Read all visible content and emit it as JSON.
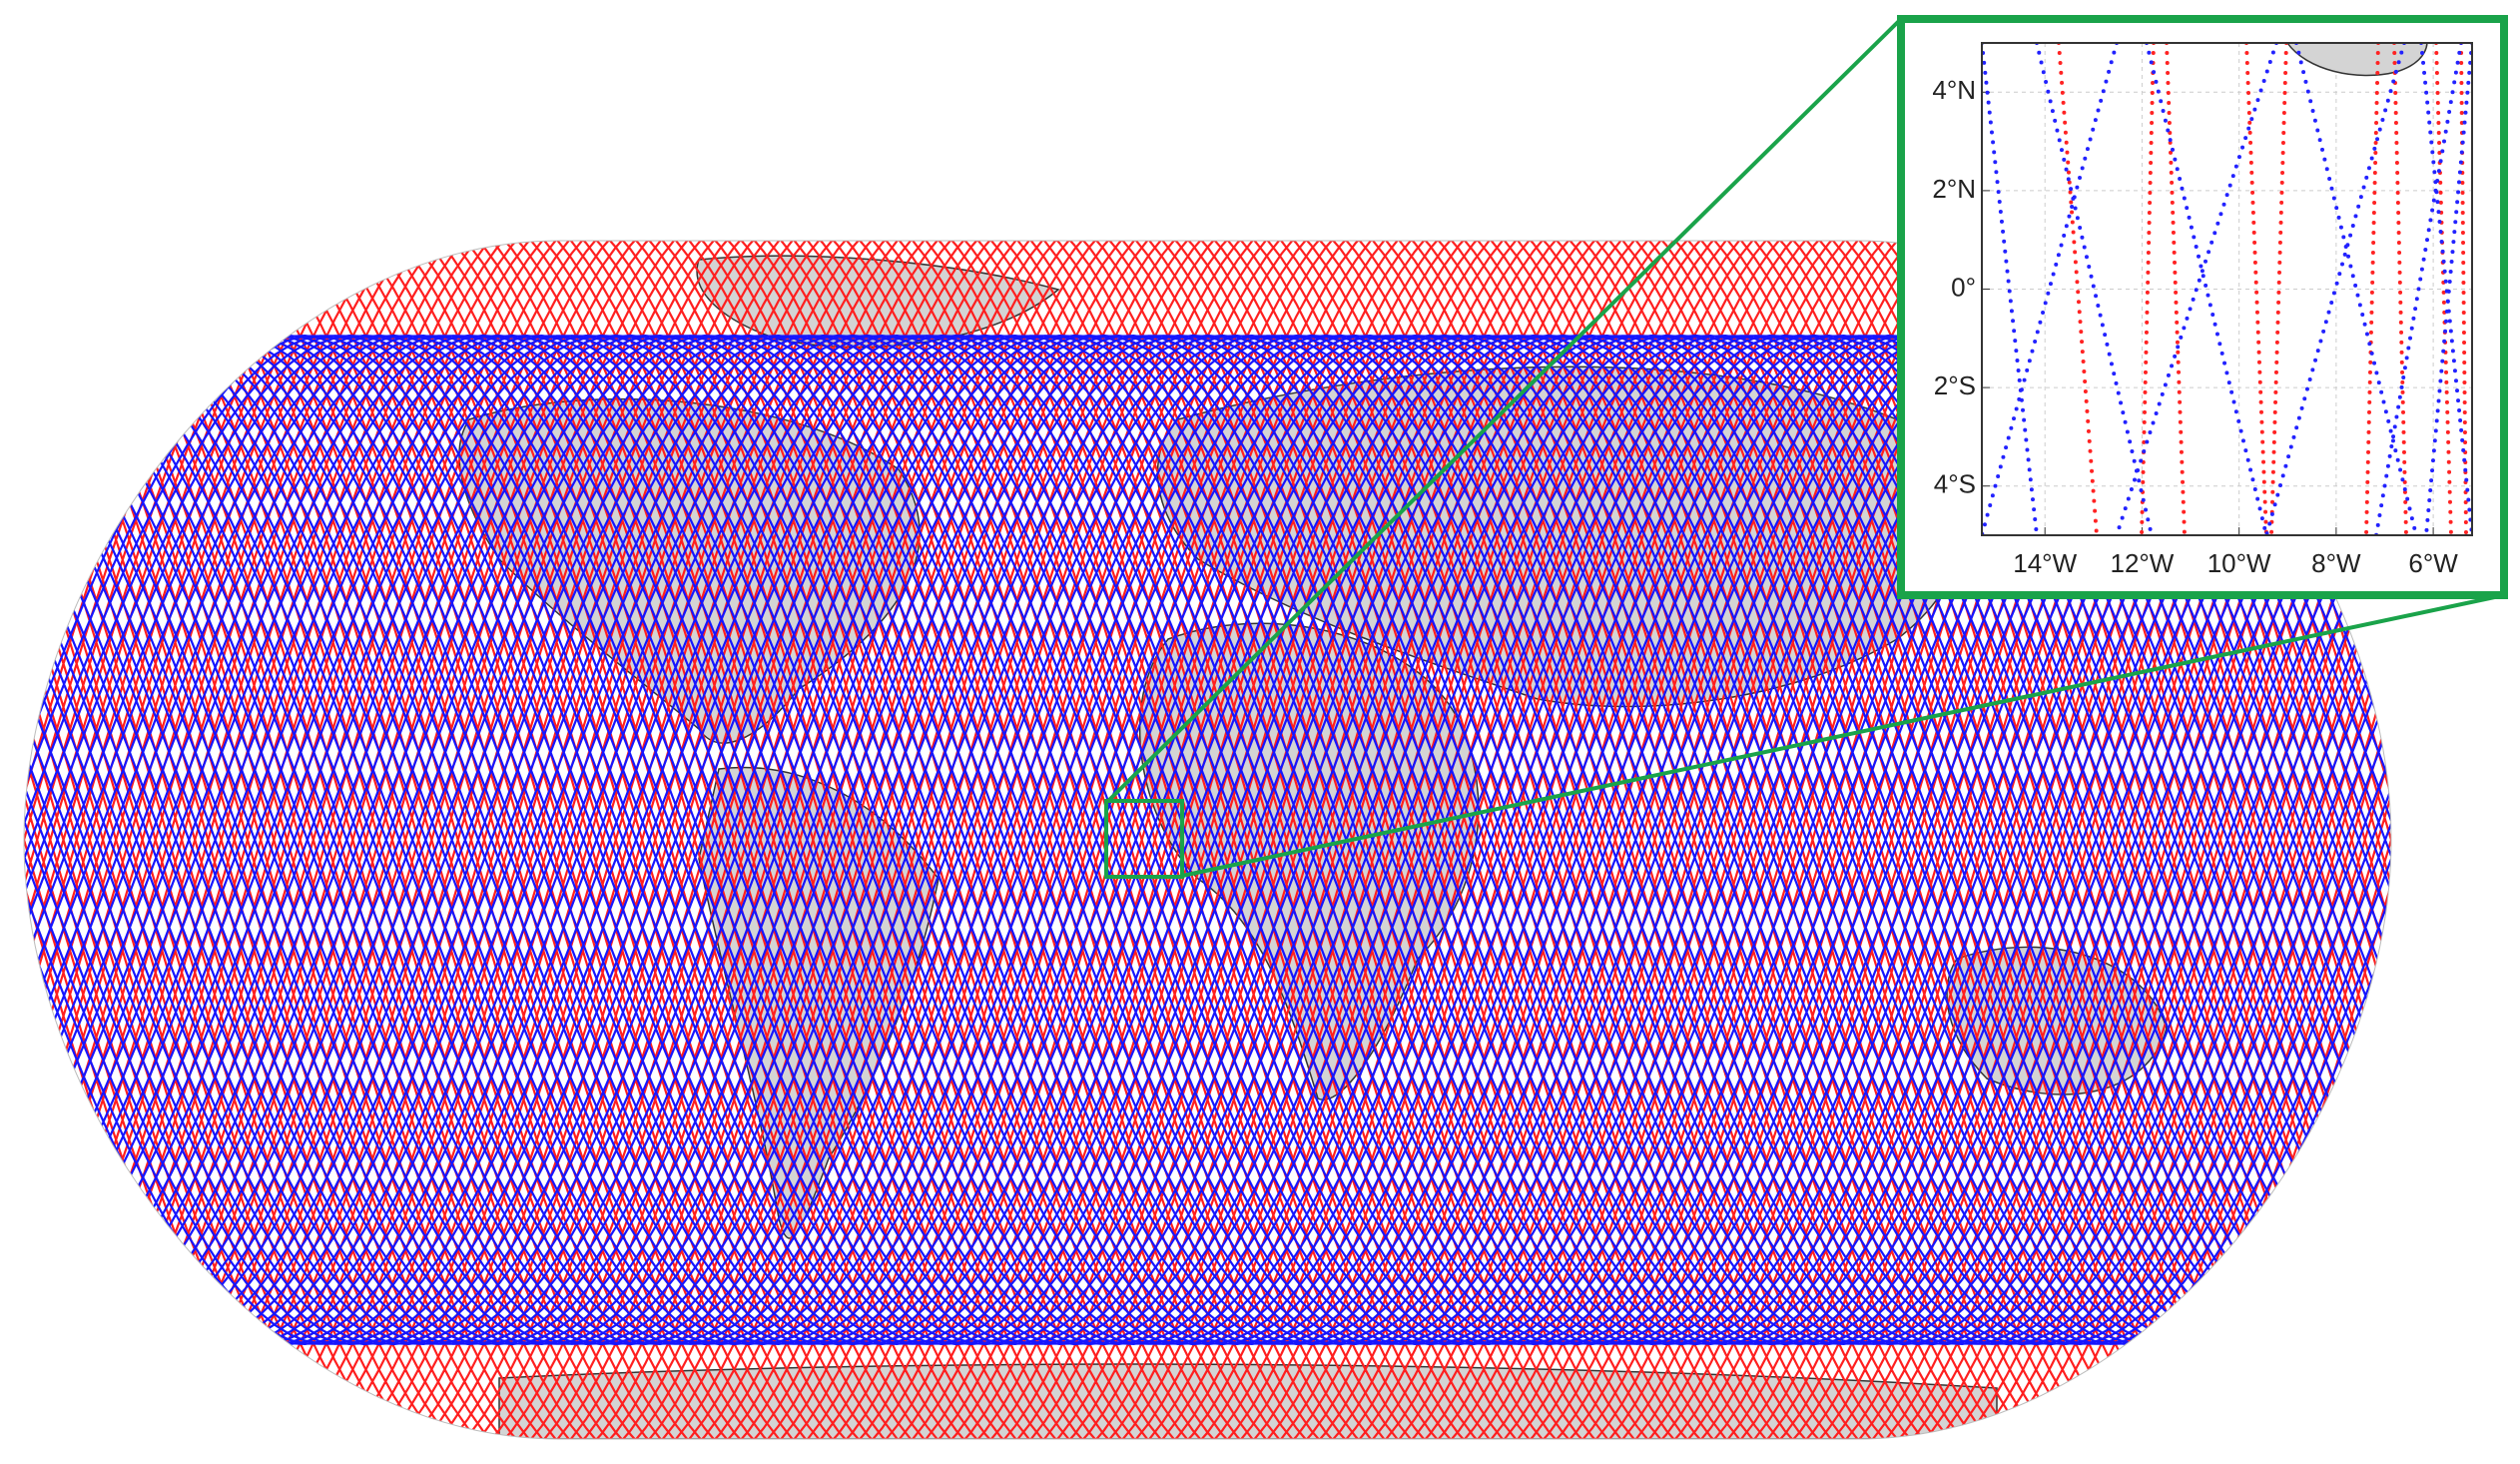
{
  "inset": {
    "latlim": [
      -5,
      5
    ],
    "lonlim": [
      -15.3,
      -5.2
    ],
    "lat_ticks": [
      {
        "value": 4,
        "label": "4°N"
      },
      {
        "value": 2,
        "label": "2°N"
      },
      {
        "value": 0,
        "label": "0°"
      },
      {
        "value": -2,
        "label": "2°S"
      },
      {
        "value": -4,
        "label": "4°S"
      }
    ],
    "lon_ticks": [
      {
        "value": -14,
        "label": "14°W"
      },
      {
        "value": -12,
        "label": "12°W"
      },
      {
        "value": -10,
        "label": "10°W"
      },
      {
        "value": -8,
        "label": "8°W"
      },
      {
        "value": -6,
        "label": "6°W"
      }
    ]
  }
}
